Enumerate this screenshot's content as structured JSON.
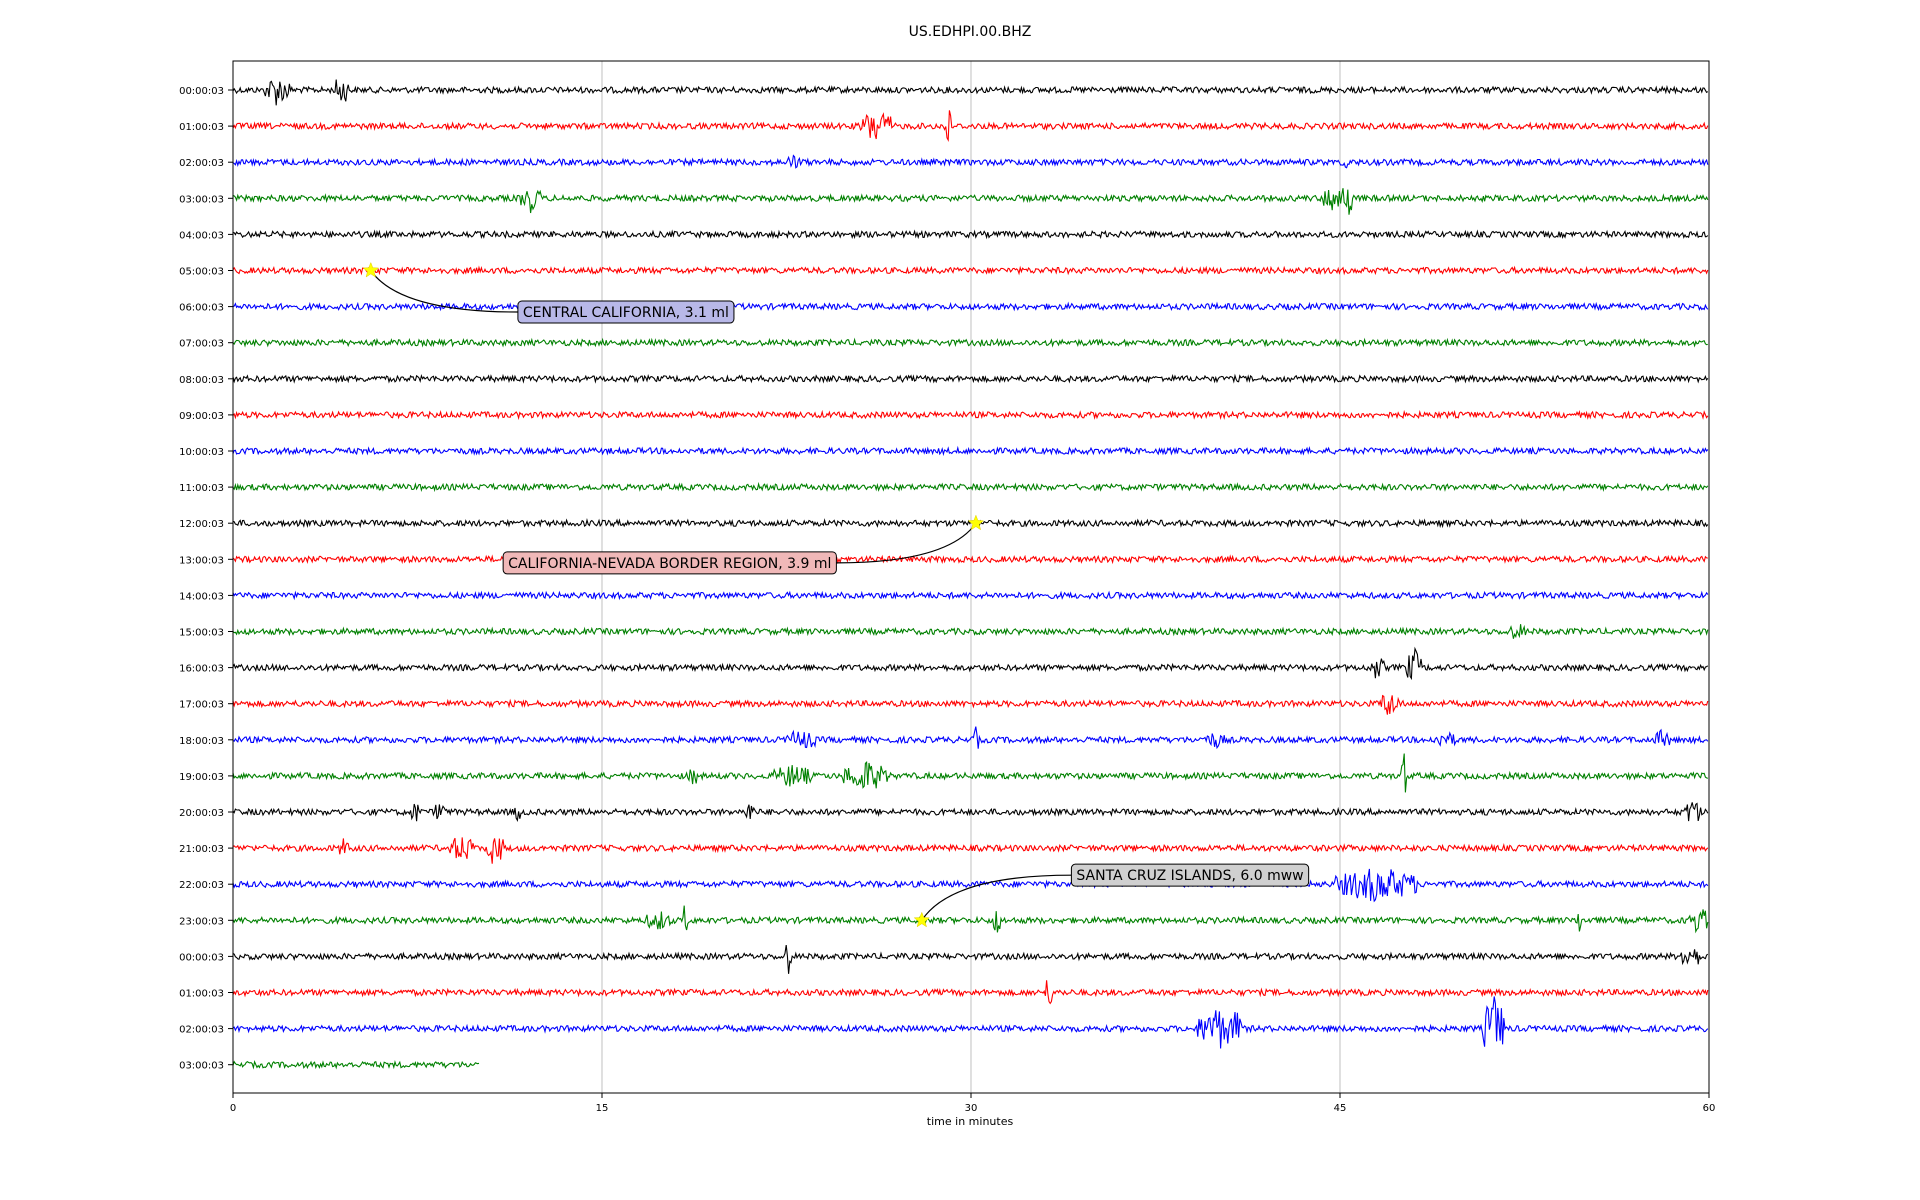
{
  "chart_data": {
    "type": "line",
    "title": "US.EDHPI.00.BHZ",
    "xlabel": "time in minutes",
    "ylabel": "",
    "xlim": [
      0,
      60
    ],
    "x_ticks": [
      "0",
      "15",
      "30",
      "45",
      "60"
    ],
    "grid": "vertical lines at 15, 30, 45",
    "row_labels": [
      "00:00:03",
      "01:00:03",
      "02:00:03",
      "03:00:03",
      "04:00:03",
      "05:00:03",
      "06:00:03",
      "07:00:03",
      "08:00:03",
      "09:00:03",
      "10:00:03",
      "11:00:03",
      "12:00:03",
      "13:00:03",
      "14:00:03",
      "15:00:03",
      "16:00:03",
      "17:00:03",
      "18:00:03",
      "19:00:03",
      "20:00:03",
      "21:00:03",
      "22:00:03",
      "23:00:03",
      "00:00:03",
      "01:00:03",
      "02:00:03",
      "03:00:03"
    ],
    "color_cycle": [
      "#000000",
      "#ff0000",
      "#0000ff",
      "#008000"
    ],
    "last_row_end_minute": 10,
    "bursts": [
      {
        "row": 0,
        "minute": 1.3,
        "width": 1.0,
        "amp": 14
      },
      {
        "row": 0,
        "minute": 4.1,
        "width": 0.6,
        "amp": 14
      },
      {
        "row": 1,
        "minute": 25.5,
        "width": 1.3,
        "amp": 16
      },
      {
        "row": 1,
        "minute": 28.8,
        "width": 0.4,
        "amp": 24
      },
      {
        "row": 2,
        "minute": 22.5,
        "width": 0.6,
        "amp": 5
      },
      {
        "row": 2,
        "minute": 45.1,
        "width": 0.2,
        "amp": 14
      },
      {
        "row": 3,
        "minute": 11.7,
        "width": 0.8,
        "amp": 12
      },
      {
        "row": 3,
        "minute": 44.3,
        "width": 1.0,
        "amp": 14
      },
      {
        "row": 3,
        "minute": 45.2,
        "width": 0.3,
        "amp": 26
      },
      {
        "row": 15,
        "minute": 51.8,
        "width": 0.8,
        "amp": 6
      },
      {
        "row": 16,
        "minute": 46.2,
        "width": 0.6,
        "amp": 10
      },
      {
        "row": 16,
        "minute": 47.7,
        "width": 0.6,
        "amp": 18
      },
      {
        "row": 17,
        "minute": 46.6,
        "width": 0.8,
        "amp": 12
      },
      {
        "row": 18,
        "minute": 22.5,
        "width": 1.2,
        "amp": 8
      },
      {
        "row": 18,
        "minute": 30.1,
        "width": 0.2,
        "amp": 16
      },
      {
        "row": 18,
        "minute": 39.5,
        "width": 0.8,
        "amp": 6
      },
      {
        "row": 18,
        "minute": 48.8,
        "width": 0.9,
        "amp": 6
      },
      {
        "row": 18,
        "minute": 57.8,
        "width": 0.6,
        "amp": 8
      },
      {
        "row": 19,
        "minute": 18.5,
        "width": 0.4,
        "amp": 8
      },
      {
        "row": 19,
        "minute": 22.0,
        "width": 1.5,
        "amp": 10
      },
      {
        "row": 19,
        "minute": 24.8,
        "width": 1.8,
        "amp": 14
      },
      {
        "row": 19,
        "minute": 47.5,
        "width": 0.2,
        "amp": 28
      },
      {
        "row": 20,
        "minute": 7.2,
        "width": 0.4,
        "amp": 10
      },
      {
        "row": 20,
        "minute": 8.2,
        "width": 0.4,
        "amp": 10
      },
      {
        "row": 20,
        "minute": 11.4,
        "width": 0.3,
        "amp": 8
      },
      {
        "row": 20,
        "minute": 20.8,
        "width": 0.4,
        "amp": 8
      },
      {
        "row": 20,
        "minute": 59.0,
        "width": 0.7,
        "amp": 12
      },
      {
        "row": 21,
        "minute": 4.3,
        "width": 0.4,
        "amp": 8
      },
      {
        "row": 21,
        "minute": 8.8,
        "width": 1.0,
        "amp": 12
      },
      {
        "row": 21,
        "minute": 10.3,
        "width": 0.7,
        "amp": 16
      },
      {
        "row": 22,
        "minute": 44.8,
        "width": 3.4,
        "amp": 16
      },
      {
        "row": 23,
        "minute": 16.8,
        "width": 1.0,
        "amp": 8
      },
      {
        "row": 23,
        "minute": 18.2,
        "width": 0.3,
        "amp": 14
      },
      {
        "row": 23,
        "minute": 30.8,
        "width": 0.4,
        "amp": 14
      },
      {
        "row": 23,
        "minute": 54.6,
        "width": 0.2,
        "amp": 14
      },
      {
        "row": 23,
        "minute": 59.2,
        "width": 0.8,
        "amp": 12
      },
      {
        "row": 24,
        "minute": 22.4,
        "width": 0.3,
        "amp": 18
      },
      {
        "row": 24,
        "minute": 58.7,
        "width": 1.0,
        "amp": 10
      },
      {
        "row": 25,
        "minute": 33.0,
        "width": 0.3,
        "amp": 16
      },
      {
        "row": 26,
        "minute": 39.2,
        "width": 1.6,
        "amp": 20
      },
      {
        "row": 26,
        "minute": 40.7,
        "width": 0.3,
        "amp": 28
      },
      {
        "row": 26,
        "minute": 50.8,
        "width": 0.9,
        "amp": 34
      }
    ],
    "events": [
      {
        "label": "CENTRAL CALIFORNIA, 3.1 ml",
        "row": 5,
        "minute": 5.6,
        "box_color": "#b8b8e8",
        "box_minute": 11.5,
        "box_row_offset": 1.15
      },
      {
        "label": "CALIFORNIA-NEVADA BORDER REGION, 3.9 ml",
        "row": 12,
        "minute": 30.2,
        "box_color": "#f0b8b8",
        "box_minute": 10.9,
        "box_row_offset": 1.1
      },
      {
        "label": "SANTA CRUZ ISLANDS, 6.0 mww",
        "row": 23,
        "minute": 28.0,
        "box_color": "#d0d0d0",
        "box_minute": 34.0,
        "box_row_offset": -1.25
      }
    ]
  }
}
